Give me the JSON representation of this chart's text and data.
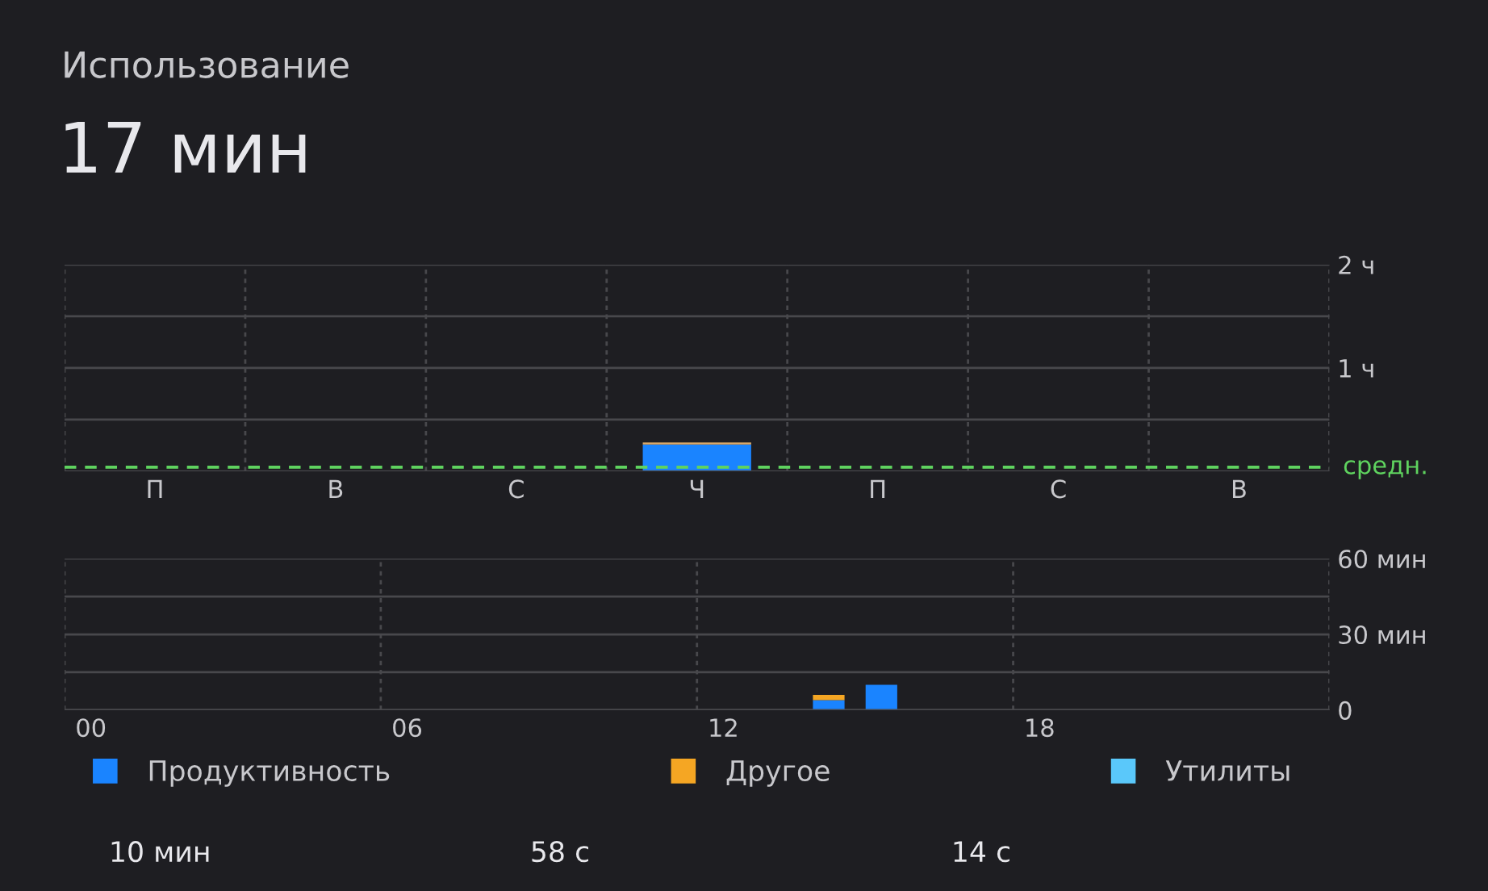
{
  "chart_data": [
    {
      "type": "bar",
      "title": "Использование",
      "subtitle": "17 мин",
      "stacked": true,
      "grid": true,
      "categories": [
        "П",
        "В",
        "С",
        "Ч",
        "П",
        "С",
        "В"
      ],
      "series": [
        {
          "color": "#1a84ff",
          "values": [
            0,
            0,
            0,
            0.26,
            0,
            0,
            0
          ]
        },
        {
          "color": "#d8a86a",
          "values": [
            0,
            0,
            0,
            0.02,
            0,
            0,
            0
          ]
        }
      ],
      "ylim": [
        0,
        2
      ],
      "yticks": [
        {
          "value": 0.5,
          "label": null
        },
        {
          "value": 1,
          "label": "1 ч"
        },
        {
          "value": 1.5,
          "label": null
        },
        {
          "value": 2,
          "label": "2 ч"
        }
      ],
      "ref_lines": [
        {
          "axis": "y",
          "value": 0.04,
          "label": "средн.",
          "color": "#5fd35f",
          "line_style": "dashed"
        }
      ]
    },
    {
      "type": "bar",
      "stacked": true,
      "grid": true,
      "legend": "bottom",
      "categories": [
        "00",
        null,
        null,
        null,
        null,
        null,
        "06",
        null,
        null,
        null,
        null,
        null,
        "12",
        null,
        null,
        null,
        null,
        null,
        "18",
        null,
        null,
        null,
        null,
        null
      ],
      "series": [
        {
          "name": "Продуктивность",
          "color": "#1a84ff",
          "values": [
            0,
            0,
            0,
            0,
            0,
            0,
            0,
            0,
            0,
            0,
            0,
            0,
            0,
            0,
            4,
            10,
            0,
            0,
            0,
            0,
            0,
            0,
            0,
            0
          ]
        },
        {
          "name": "Другое",
          "color": "#f5a623",
          "values": [
            0,
            0,
            0,
            0,
            0,
            0,
            0,
            0,
            0,
            0,
            0,
            0,
            0,
            0,
            2,
            0,
            0,
            0,
            0,
            0,
            0,
            0,
            0,
            0
          ]
        },
        {
          "name": "Утилиты",
          "color": "#5ac8fa",
          "values": [
            0,
            0,
            0,
            0,
            0,
            0,
            0,
            0,
            0,
            0,
            0,
            0,
            0,
            0,
            0,
            0,
            0,
            0,
            0,
            0,
            0,
            0,
            0,
            0
          ]
        }
      ],
      "ylim": [
        0,
        60
      ],
      "yticks": [
        {
          "value": 0,
          "label": "0"
        },
        {
          "value": 15,
          "label": null
        },
        {
          "value": 30,
          "label": "30 мин"
        },
        {
          "value": 45,
          "label": null
        },
        {
          "value": 60,
          "label": "60 мин"
        }
      ],
      "annotations": [
        "10 мин",
        "58 с",
        "14 с"
      ]
    }
  ]
}
